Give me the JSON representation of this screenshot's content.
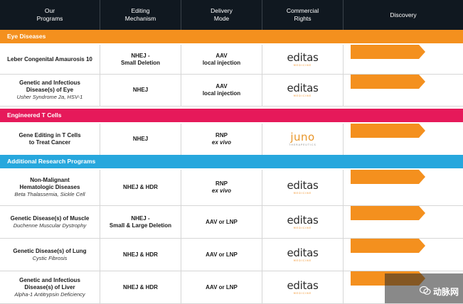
{
  "header": {
    "columns": [
      "Our\nPrograms",
      "Editing\nMechanism",
      "Delivery\nMode",
      "Commercial\nRights",
      "Discovery"
    ]
  },
  "colors": {
    "header_bg": "#101820",
    "eye": "#f4901e",
    "tcell": "#e6195a",
    "research": "#27a7dd",
    "arrow": "#f4901e",
    "editas_accent": "#f08c1e",
    "juno": "#e8962a"
  },
  "sections": [
    {
      "label": "Eye Diseases",
      "color": "#f4901e",
      "rows": [
        {
          "name": "Leber Congenital Amaurosis 10",
          "sub": "",
          "mechanism": "NHEJ -\nSmall Deletion",
          "delivery": "AAV",
          "delivery2": "local injection",
          "partner": "editas",
          "partner_sub": "MEDICINE"
        },
        {
          "name": "Genetic and Infectious\nDisease(s) of Eye",
          "sub": "Usher Syndrome 2a, HSV-1",
          "mechanism": "NHEJ",
          "delivery": "AAV",
          "delivery2": "local injection",
          "partner": "editas",
          "partner_sub": "MEDICINE"
        }
      ]
    },
    {
      "label": "Engineered T Cells",
      "color": "#e6195a",
      "rows": [
        {
          "name": "Gene Editing in T Cells\nto Treat Cancer",
          "sub": "",
          "mechanism": "NHEJ",
          "delivery": "RNP",
          "delivery2": "ex vivo",
          "partner": "juno",
          "partner_sub": "THERAPEUTICS"
        }
      ]
    },
    {
      "label": "Additional Research Programs",
      "color": "#27a7dd",
      "rows": [
        {
          "name": "Non-Malignant\nHematologic Diseases",
          "sub": "Beta Thalassemia, Sickle Cell",
          "mechanism": "NHEJ & HDR",
          "delivery": "RNP",
          "delivery2": "ex vivo",
          "partner": "editas",
          "partner_sub": "MEDICINE"
        },
        {
          "name": "Genetic Disease(s) of Muscle",
          "sub": "Duchenne Muscular Dystrophy",
          "mechanism": "NHEJ -\nSmall  & Large Deletion",
          "delivery": "AAV or LNP",
          "delivery2": "",
          "partner": "editas",
          "partner_sub": "MEDICINE"
        },
        {
          "name": "Genetic Disease(s) of Lung",
          "sub": "Cystic Fibrosis",
          "mechanism": "NHEJ & HDR",
          "delivery": "AAV or LNP",
          "delivery2": "",
          "partner": "editas",
          "partner_sub": "MEDICINE"
        },
        {
          "name": "Genetic and Infectious\nDisease(s) of Liver",
          "sub": "Alpha-1 Antitrypsin Deficiency",
          "mechanism": "NHEJ & HDR",
          "delivery": "AAV or LNP",
          "delivery2": "",
          "partner": "editas",
          "partner_sub": "MEDICINE"
        }
      ]
    }
  ],
  "watermark": {
    "text": "动脉网",
    "icon": "wechat-icon"
  }
}
